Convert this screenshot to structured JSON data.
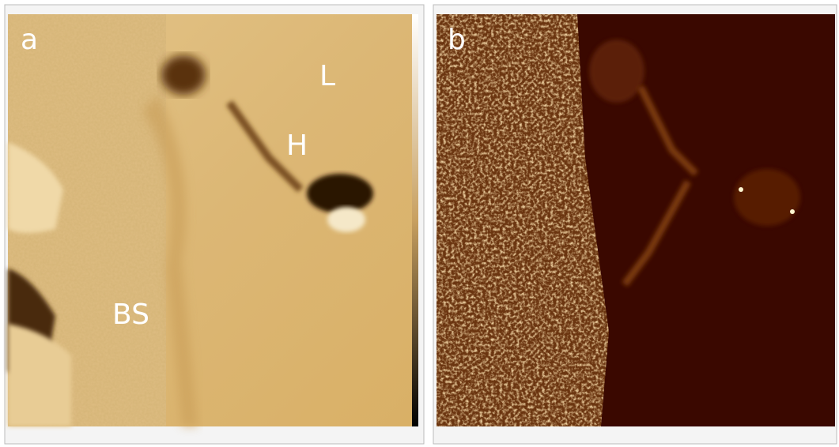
{
  "panels": [
    {
      "label": "a",
      "annotations": [
        "L",
        "H",
        "BS"
      ]
    },
    {
      "label": "b"
    }
  ]
}
